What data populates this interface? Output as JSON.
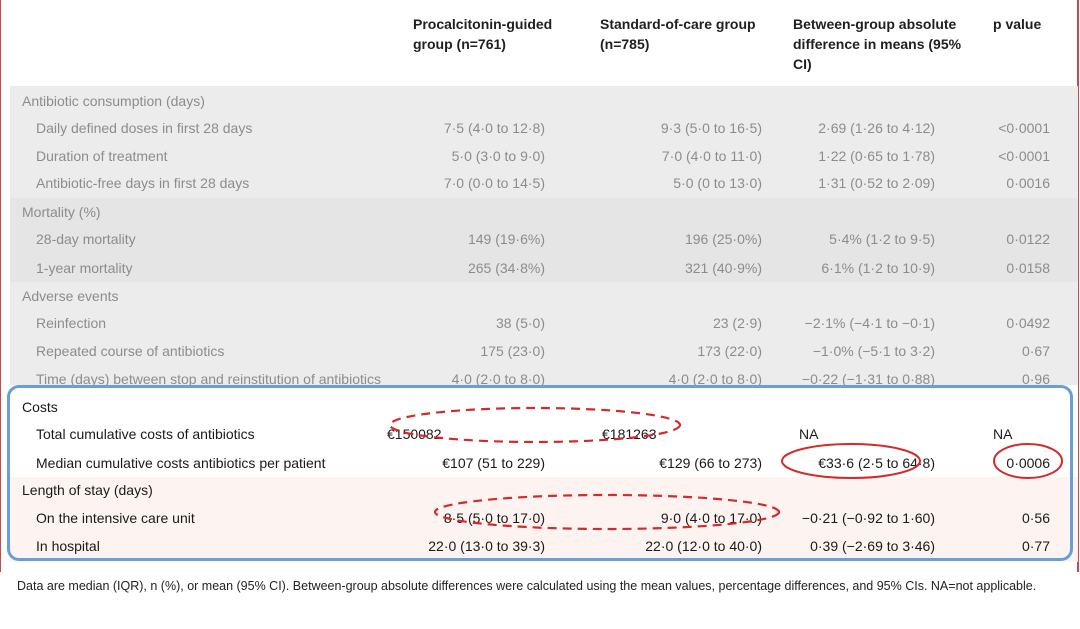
{
  "headers": {
    "procalcitonin": "Procalcitonin-guided group (n=761)",
    "standard": "Standard-of-care group (n=785)",
    "difference": "Between-group absolute difference in means (95% CI)",
    "pvalue": "p value"
  },
  "antibiotic": {
    "title": "Antibiotic consumption (days)",
    "r1": {
      "label": "Daily defined doses in first 28 days",
      "a": "7·5 (4·0 to 12·8)",
      "b": "9·3 (5·0 to 16·5)",
      "c": "2·69 (1·26 to 4·12)",
      "d": "<0·0001"
    },
    "r2": {
      "label": "Duration of treatment",
      "a": "5·0 (3·0 to 9·0)",
      "b": "7·0 (4·0 to 11·0)",
      "c": "1·22 (0·65 to 1·78)",
      "d": "<0·0001"
    },
    "r3": {
      "label": "Antibiotic-free days in first 28 days",
      "a": "7·0 (0·0 to 14·5)",
      "b": "5·0 (0 to 13·0)",
      "c": "1·31 (0·52 to 2·09)",
      "d": "0·0016"
    }
  },
  "mortality": {
    "title": "Mortality (%)",
    "r1": {
      "label": "28-day mortality",
      "a": "149 (19·6%)",
      "b": "196 (25·0%)",
      "c": "5·4% (1·2 to 9·5)",
      "d": "0·0122"
    },
    "r2": {
      "label": "1-year mortality",
      "a": "265 (34·8%)",
      "b": "321 (40·9%)",
      "c": "6·1% (1·2 to 10·9)",
      "d": "0·0158"
    }
  },
  "adverse": {
    "title": "Adverse events",
    "r1": {
      "label": "Reinfection",
      "a": "38 (5·0)",
      "b": "23 (2·9)",
      "c": "−2·1% (−4·1 to −0·1)",
      "d": "0·0492"
    },
    "r2": {
      "label": "Repeated course of antibiotics",
      "a": "175 (23·0)",
      "b": "173 (22·0)",
      "c": "−1·0% (−5·1 to 3·2)",
      "d": "0·67"
    },
    "r3": {
      "label": "Time (days) between stop and reinstitution of antibiotics",
      "a": "4·0 (2·0 to 8·0)",
      "b": "4·0 (2·0 to 8·0)",
      "c": "−0·22 (−1·31 to 0·88)",
      "d": "0·96"
    }
  },
  "costs": {
    "title": "Costs",
    "r1": {
      "label": "Total cumulative costs of antibiotics",
      "a": "€150082",
      "b": "€181263",
      "c": "NA",
      "d": "NA"
    },
    "r2": {
      "label": "Median cumulative costs antibiotics per patient",
      "a": "€107 (51 to 229)",
      "b": "€129 (66 to 273)",
      "c": "€33·6 (2·5 to 64·8)",
      "d": "0·0006"
    }
  },
  "stay": {
    "title": "Length of stay (days)",
    "r1": {
      "label": "On the intensive care unit",
      "a": "8·5 (5·0 to 17·0)",
      "b": "9·0 (4·0 to 17·0)",
      "c": "−0·21 (−0·92 to 1·60)",
      "d": "0·56"
    },
    "r2": {
      "label": "In hospital",
      "a": "22·0 (13·0 to 39·3)",
      "b": "22·0 (12·0 to 40·0)",
      "c": "0·39 (−2·69 to 3·46)",
      "d": "0·77"
    }
  },
  "footer": "Data are median (IQR), n (%), or mean (95% CI). Between-group absolute differences were calculated using the mean values, percentage differences, and 95% CIs. NA=not applicable.",
  "colors": {
    "highlight_box": "#6a9ed6",
    "annotation": "#d42a2a",
    "rule": "#c9494d"
  }
}
